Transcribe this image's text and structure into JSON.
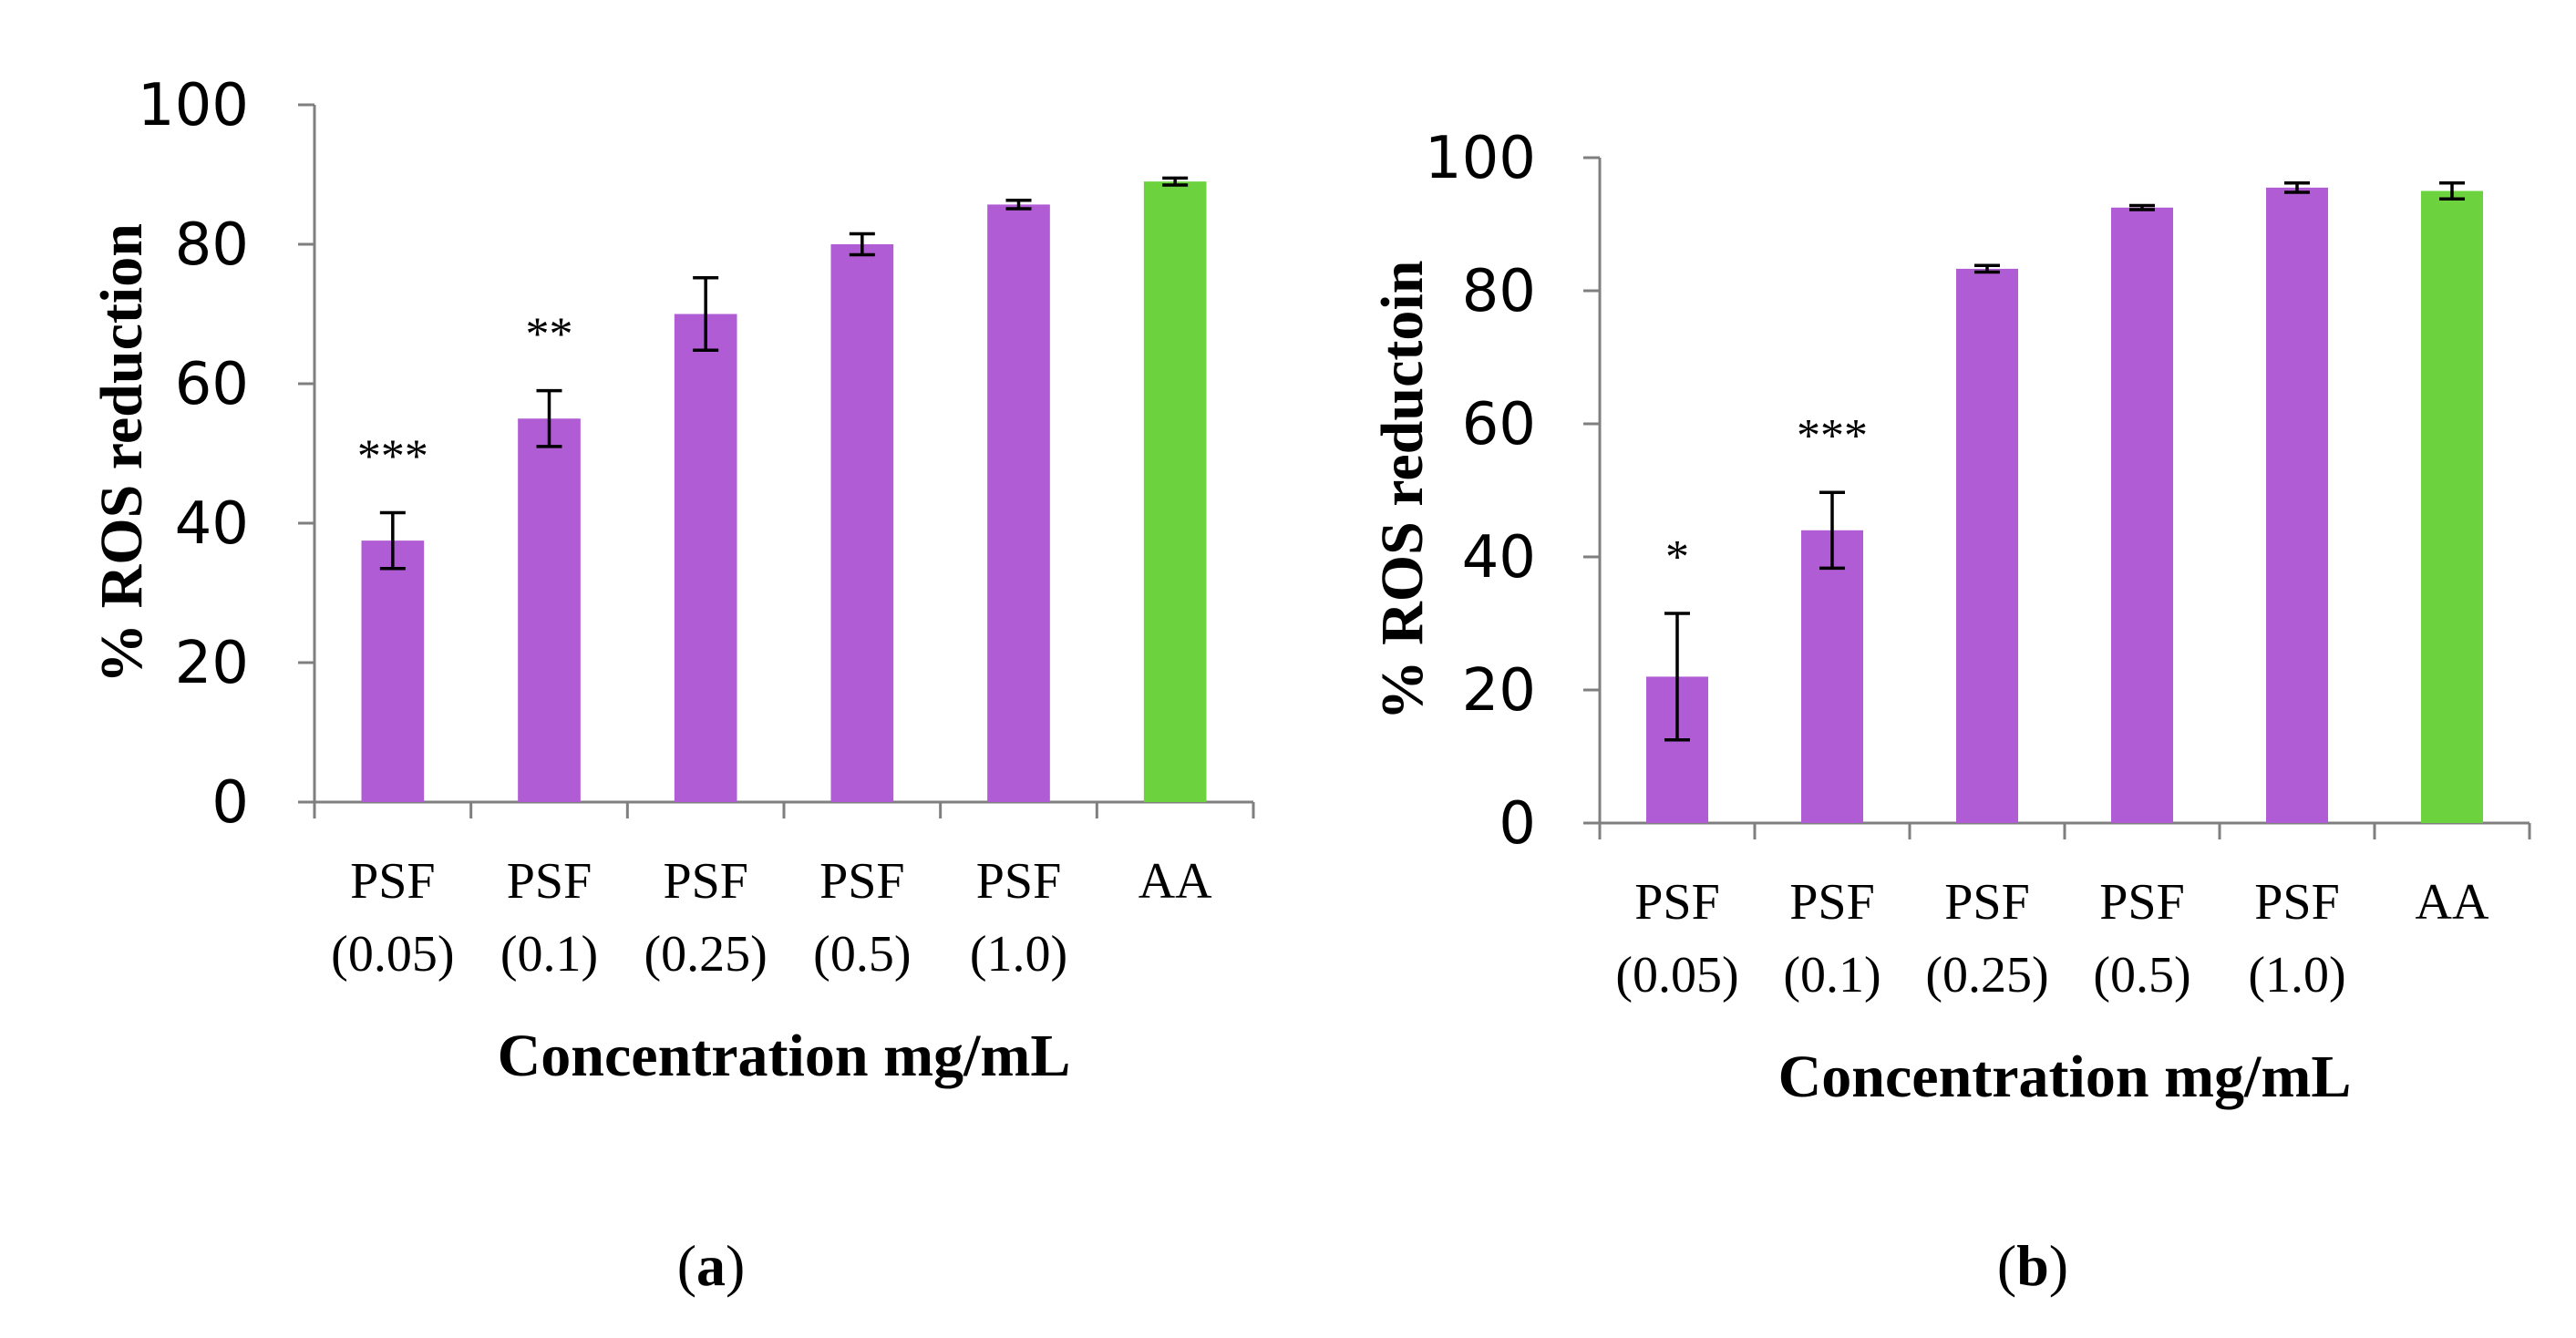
{
  "chart_data": [
    {
      "type": "bar",
      "panel_label": "(a)",
      "panel_letter": "a",
      "categories": [
        [
          "PSF",
          "(0.05)"
        ],
        [
          "PSF",
          "(0.1)"
        ],
        [
          "PSF",
          "(0.25)"
        ],
        [
          "PSF",
          "(0.5)"
        ],
        [
          "PSF",
          "(1.0)"
        ],
        [
          "AA",
          ""
        ]
      ],
      "values": [
        37.5,
        55,
        70,
        80,
        85.7,
        89
      ],
      "errors": [
        4,
        4,
        5.2,
        1.5,
        0.6,
        0.5
      ],
      "significance": [
        "***",
        "**",
        "",
        "",
        "",
        ""
      ],
      "colors": [
        "#b05cd4",
        "#b05cd4",
        "#b05cd4",
        "#b05cd4",
        "#b05cd4",
        "#6cd23e"
      ],
      "xlabel": "Concentration mg/mL",
      "ylabel": "% ROS reduction",
      "ylim": [
        0,
        100
      ],
      "yticks": [
        0,
        20,
        40,
        60,
        80,
        100
      ],
      "grid": false,
      "legend": "none"
    },
    {
      "type": "bar",
      "panel_label": "(b)",
      "panel_letter": "b",
      "categories": [
        [
          "PSF",
          "(0.05)"
        ],
        [
          "PSF",
          "(0.1)"
        ],
        [
          "PSF",
          "(0.25)"
        ],
        [
          "PSF",
          "(0.5)"
        ],
        [
          "PSF",
          "(1.0)"
        ],
        [
          "AA",
          ""
        ]
      ],
      "values": [
        22,
        44,
        83.3,
        92.5,
        95.5,
        95
      ],
      "errors": [
        9.5,
        5.7,
        0.5,
        0.3,
        0.7,
        1.2
      ],
      "significance": [
        "*",
        "***",
        "",
        "",
        "",
        ""
      ],
      "colors": [
        "#b05cd4",
        "#b05cd4",
        "#b05cd4",
        "#b05cd4",
        "#b05cd4",
        "#6cd23e"
      ],
      "xlabel": "Concentration mg/mL",
      "ylabel": "% ROS reductoin",
      "ylim": [
        0,
        100
      ],
      "yticks": [
        0,
        20,
        40,
        60,
        80,
        100
      ],
      "grid": false,
      "legend": "none"
    }
  ]
}
